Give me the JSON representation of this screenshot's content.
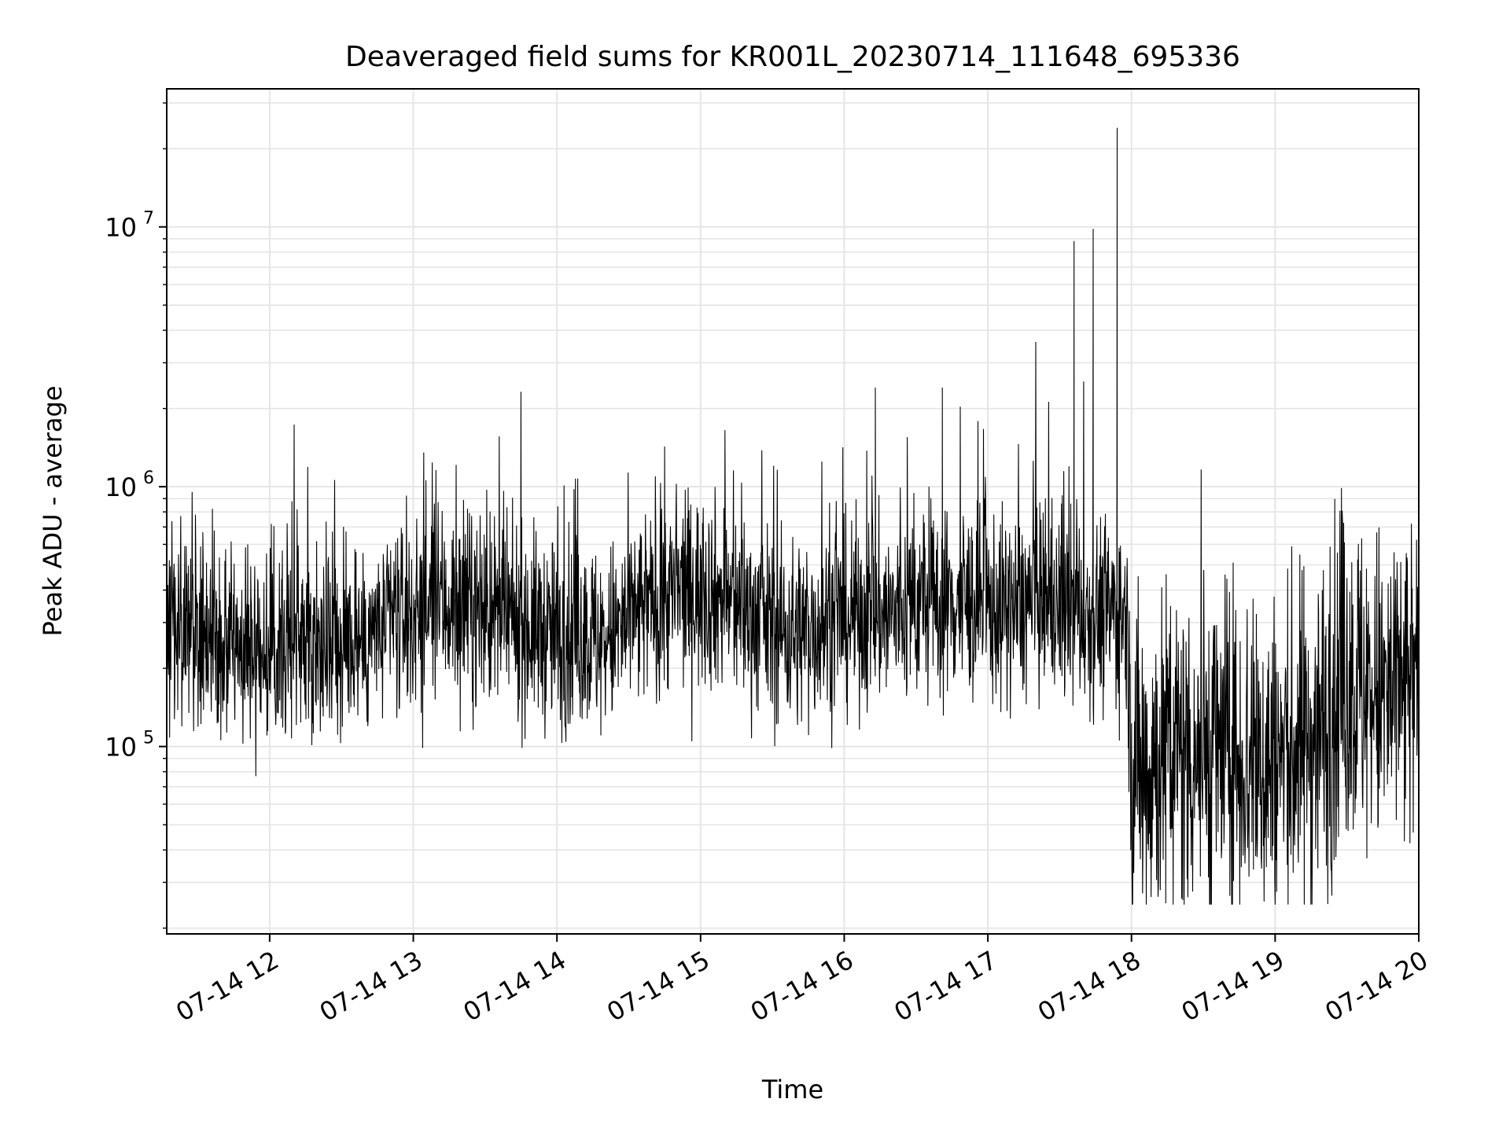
{
  "chart_data": {
    "type": "line",
    "title": "Deaveraged field sums for KR001L_20230714_111648_695336",
    "xlabel": "Time",
    "ylabel": "Peak ADU - average",
    "y_scale": "log",
    "ylim": [
      19000,
      34000000
    ],
    "xlim": [
      "2023-07-14 11:17",
      "2023-07-14 20:00"
    ],
    "x_tick_labels": [
      "07-14 12",
      "07-14 13",
      "07-14 14",
      "07-14 15",
      "07-14 16",
      "07-14 17",
      "07-14 18",
      "07-14 19",
      "07-14 20"
    ],
    "y_tick_labels": [
      {
        "base": "10",
        "exp": "5"
      },
      {
        "base": "10",
        "exp": "6"
      },
      {
        "base": "10",
        "exp": "7"
      }
    ],
    "grid": true,
    "line_color": "#000000",
    "series": [
      {
        "x": [
          "2023-07-14 11:17",
          "2023-07-14 11:30",
          "2023-07-14 11:40",
          "2023-07-14 11:50",
          "2023-07-14 12:00",
          "2023-07-14 12:10",
          "2023-07-14 12:20",
          "2023-07-14 12:30",
          "2023-07-14 12:40",
          "2023-07-14 12:50",
          "2023-07-14 13:00",
          "2023-07-14 13:10",
          "2023-07-14 13:20",
          "2023-07-14 13:30",
          "2023-07-14 13:40",
          "2023-07-14 13:50",
          "2023-07-14 14:00",
          "2023-07-14 14:10",
          "2023-07-14 14:20",
          "2023-07-14 14:30",
          "2023-07-14 14:40",
          "2023-07-14 14:50",
          "2023-07-14 15:00",
          "2023-07-14 15:10",
          "2023-07-14 15:20",
          "2023-07-14 15:30",
          "2023-07-14 15:40",
          "2023-07-14 15:50",
          "2023-07-14 16:00",
          "2023-07-14 16:10",
          "2023-07-14 16:13",
          "2023-07-14 16:20",
          "2023-07-14 16:30",
          "2023-07-14 16:41",
          "2023-07-14 16:50",
          "2023-07-14 17:00",
          "2023-07-14 17:10",
          "2023-07-14 17:20",
          "2023-07-14 17:30",
          "2023-07-14 17:36",
          "2023-07-14 17:40",
          "2023-07-14 17:44",
          "2023-07-14 17:50",
          "2023-07-14 17:54",
          "2023-07-14 17:58",
          "2023-07-14 18:00",
          "2023-07-14 18:10",
          "2023-07-14 18:20",
          "2023-07-14 18:30",
          "2023-07-14 18:40",
          "2023-07-14 18:50",
          "2023-07-14 19:00",
          "2023-07-14 19:10",
          "2023-07-14 19:20",
          "2023-07-14 19:30",
          "2023-07-14 19:40",
          "2023-07-14 19:50",
          "2023-07-14 20:00"
        ],
        "y": [
          300000,
          280000,
          250000,
          240000,
          230000,
          270000,
          260000,
          240000,
          250000,
          300000,
          320000,
          360000,
          340000,
          330000,
          300000,
          290000,
          260000,
          270000,
          250000,
          300000,
          360000,
          390000,
          400000,
          370000,
          330000,
          290000,
          270000,
          300000,
          310000,
          330000,
          2400000,
          320000,
          350000,
          2400000,
          360000,
          340000,
          330000,
          370000,
          340000,
          8800000,
          330000,
          9800000,
          330000,
          24000000,
          320000,
          80000,
          90000,
          95000,
          100000,
          95000,
          90000,
          85000,
          100000,
          120000,
          180000,
          160000,
          150000,
          170000
        ]
      }
    ]
  }
}
